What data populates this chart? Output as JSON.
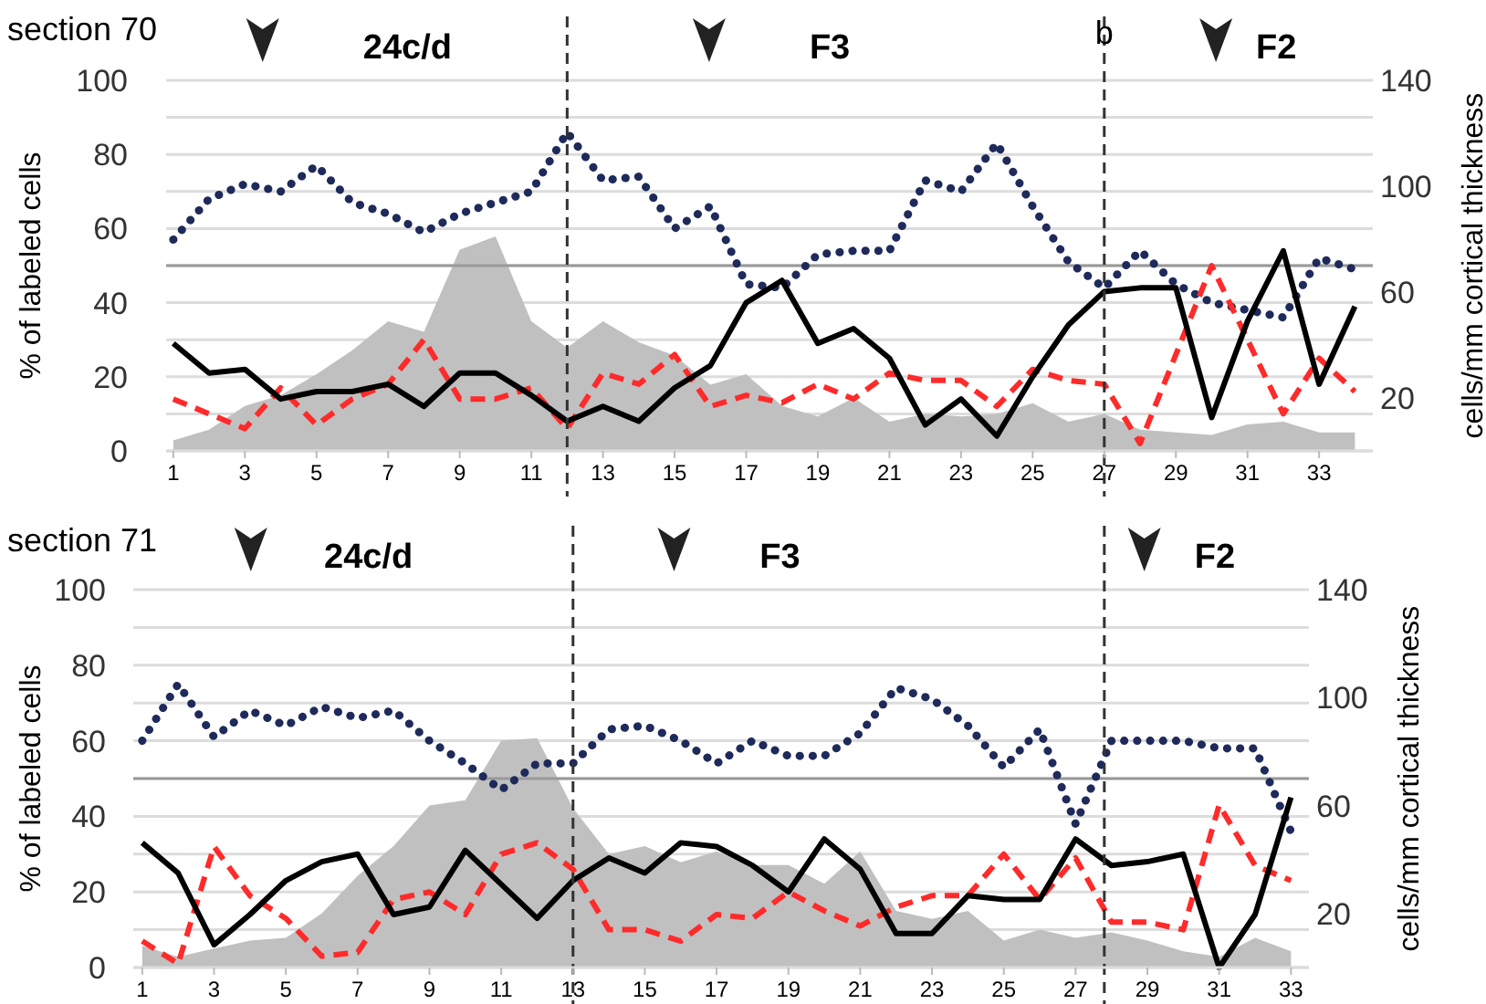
{
  "chart_data": [
    {
      "type": "line",
      "title": "section 70",
      "ylabel": "% of labeled cells",
      "y2label": "cells/mm cortical thickness",
      "annotations": [
        "24c/d",
        "F3",
        "F2"
      ],
      "x": [
        1,
        2,
        3,
        4,
        5,
        6,
        7,
        8,
        9,
        10,
        11,
        12,
        13,
        14,
        15,
        16,
        17,
        18,
        19,
        20,
        21,
        22,
        23,
        24,
        25,
        26,
        27,
        28,
        29,
        30,
        31,
        32,
        33,
        34
      ],
      "xlim": [
        0.8,
        34.5
      ],
      "xticks": [
        1,
        3,
        5,
        7,
        9,
        11,
        13,
        15,
        17,
        19,
        21,
        23,
        25,
        27,
        29,
        31,
        33
      ],
      "ylim": [
        0,
        100
      ],
      "yticks": [
        0,
        {
          "value": 10,
          "label": null
        },
        20,
        {
          "value": 30,
          "label": null
        },
        40,
        {
          "value": 50,
          "label": null
        },
        60,
        {
          "value": 70,
          "label": null
        },
        80,
        {
          "value": 90,
          "label": null
        },
        100
      ],
      "y2lim": [
        0,
        140
      ],
      "y2ticks": [
        20,
        60,
        100,
        140
      ],
      "grid": "y",
      "ref_lines": [
        {
          "axis": "y",
          "value": 50,
          "color": "#999999",
          "line_style": "solid"
        },
        {
          "axis": "x",
          "value": 12,
          "color": "#333333",
          "line_style": "dashed"
        },
        {
          "axis": "x",
          "value": 27,
          "label": "b",
          "color": "#333333",
          "line_style": "dashed"
        }
      ],
      "series": [
        {
          "type": "area",
          "axis": "y2",
          "color": "#c0c0c0",
          "values": [
            4,
            8,
            17,
            21,
            29,
            38,
            49,
            45,
            76,
            81,
            49,
            39,
            49,
            41,
            36,
            25,
            29,
            17,
            13,
            20,
            11,
            14,
            13,
            14,
            18,
            11,
            14,
            8,
            7,
            6,
            10,
            11,
            7,
            7
          ]
        },
        {
          "color": "#1e2a5a",
          "line_style": "dotted",
          "values": [
            57,
            68,
            72,
            70,
            77,
            67,
            64,
            59,
            64,
            67,
            70,
            86,
            73,
            74,
            60,
            66,
            45,
            44,
            53,
            54,
            54,
            73,
            70,
            83,
            66,
            51,
            44,
            54,
            45,
            40,
            38,
            36,
            52,
            49
          ]
        },
        {
          "color": "#ff2a2a",
          "line_style": "dashed",
          "values": [
            14,
            10,
            6,
            17,
            7,
            14,
            18,
            30,
            14,
            14,
            17,
            6,
            21,
            18,
            26,
            12,
            15,
            13,
            18,
            14,
            21,
            19,
            19,
            12,
            22,
            19,
            18,
            2,
            26,
            50,
            30,
            10,
            25,
            16
          ]
        },
        {
          "color": "#000000",
          "line_style": "solid",
          "values": [
            29,
            21,
            22,
            14,
            16,
            16,
            18,
            12,
            21,
            21,
            15,
            8,
            12,
            8,
            17,
            23,
            40,
            46,
            29,
            33,
            25,
            7,
            14,
            4,
            20,
            34,
            43,
            44,
            44,
            9,
            35,
            54,
            18,
            39
          ]
        }
      ]
    },
    {
      "type": "line",
      "title": "section 71",
      "ylabel": "% of labeled cells",
      "y2label": "cells/mm cortical thickness",
      "annotations": [
        "24c/d",
        "F3",
        "F2"
      ],
      "x": [
        1,
        2,
        3,
        4,
        5,
        6,
        7,
        8,
        9,
        10,
        11,
        12,
        13,
        14,
        15,
        16,
        17,
        18,
        19,
        20,
        21,
        22,
        23,
        24,
        25,
        26,
        27,
        28,
        29,
        30,
        31,
        32,
        33
      ],
      "xlim": [
        0.75,
        33.5
      ],
      "xticks": [
        1,
        3,
        5,
        7,
        9,
        11,
        13,
        15,
        17,
        19,
        21,
        23,
        25,
        27,
        29,
        31,
        33
      ],
      "ylim": [
        0,
        100
      ],
      "yticks": [
        0,
        {
          "value": 10,
          "label": null
        },
        20,
        {
          "value": 30,
          "label": null
        },
        40,
        {
          "value": 50,
          "label": null
        },
        60,
        {
          "value": 70,
          "label": null
        },
        80,
        {
          "value": 90,
          "label": null
        },
        100
      ],
      "y2lim": [
        0,
        140
      ],
      "y2ticks": [
        20,
        60,
        100,
        140
      ],
      "grid": "y",
      "ref_lines": [
        {
          "axis": "y",
          "value": 50,
          "color": "#999999",
          "line_style": "solid"
        },
        {
          "axis": "x",
          "value": 13,
          "color": "#333333",
          "line_style": "dashed"
        },
        {
          "axis": "x",
          "value": 27.8,
          "color": "#333333",
          "line_style": "dashed"
        }
      ],
      "series": [
        {
          "type": "area",
          "axis": "y2",
          "color": "#c0c0c0",
          "values": [
            8,
            4,
            7,
            10,
            11,
            20,
            34,
            45,
            60,
            62,
            84,
            85,
            59,
            42,
            45,
            39,
            43,
            38,
            38,
            31,
            43,
            21,
            18,
            21,
            10,
            14,
            11,
            13,
            10,
            6,
            4,
            11,
            6
          ]
        },
        {
          "color": "#1e2a5a",
          "line_style": "dotted",
          "values": [
            60,
            75,
            61,
            68,
            64,
            69,
            66,
            68,
            60,
            54,
            47,
            54,
            54,
            63,
            64,
            60,
            54,
            60,
            56,
            56,
            62,
            74,
            71,
            64,
            53,
            63,
            38,
            60,
            60,
            60,
            58,
            58,
            36
          ]
        },
        {
          "color": "#ff2a2a",
          "line_style": "dashed",
          "values": [
            7,
            1,
            32,
            19,
            13,
            3,
            4,
            18,
            20,
            14,
            30,
            33,
            26,
            10,
            10,
            7,
            14,
            13,
            20,
            15,
            11,
            16,
            19,
            19,
            30,
            18,
            29,
            12,
            12,
            10,
            43,
            27,
            23
          ]
        },
        {
          "color": "#000000",
          "line_style": "solid",
          "values": [
            33,
            25,
            6,
            14,
            23,
            28,
            30,
            14,
            16,
            31,
            22,
            13,
            23,
            29,
            25,
            33,
            32,
            27,
            20,
            34,
            26,
            9,
            9,
            19,
            18,
            18,
            34,
            27,
            28,
            30,
            0,
            14,
            45
          ]
        }
      ]
    }
  ]
}
